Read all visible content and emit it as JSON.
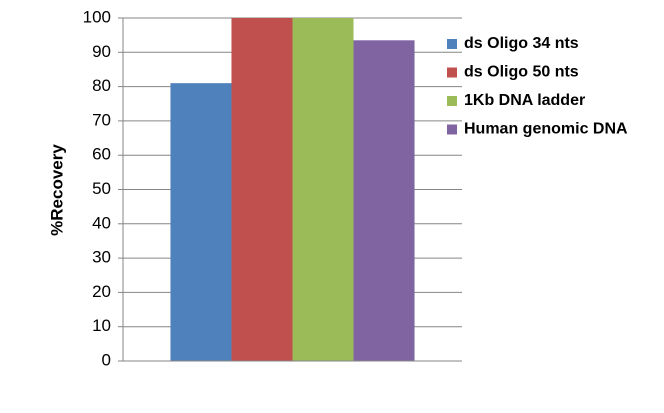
{
  "chart_data": {
    "type": "bar",
    "y_label": "%Recovery",
    "categories": [
      null
    ],
    "series": [
      {
        "name": "ds Oligo 34 nts",
        "color": "#4f81bd",
        "values": [
          81
        ]
      },
      {
        "name": "ds Oligo 50 nts",
        "color": "#c0504d",
        "values": [
          100
        ]
      },
      {
        "name": "1Kb DNA ladder",
        "color": "#9bbb59",
        "values": [
          100
        ]
      },
      {
        "name": "Human genomic DNA",
        "color": "#8064a2",
        "values": [
          93.5
        ]
      }
    ],
    "ylim": [
      0,
      100
    ],
    "yticks": [
      0,
      10,
      20,
      30,
      40,
      50,
      60,
      70,
      80,
      90,
      100
    ],
    "grid": true,
    "legend": "right"
  }
}
